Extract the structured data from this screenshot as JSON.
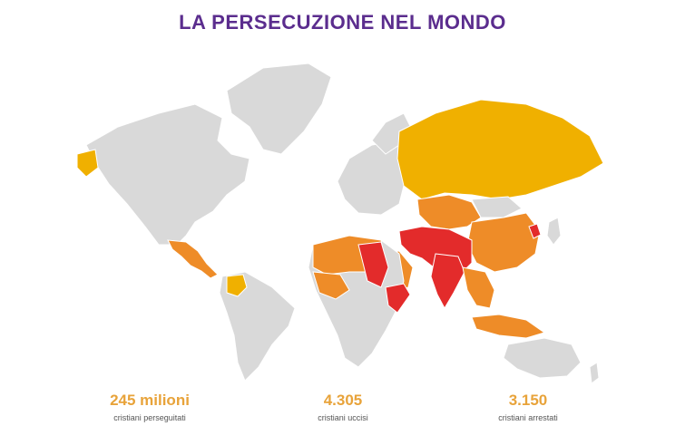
{
  "title": "LA PERSECUZIONE NEL MONDO",
  "colors": {
    "title": "#5b2d8e",
    "base_land": "#d9d9d9",
    "level_high": "#f0b000",
    "level_very_high": "#ee8c28",
    "level_extreme": "#e32b2b",
    "stat_value": "#e8a33a"
  },
  "stats": [
    {
      "value": "245 milioni",
      "label": "cristiani perseguitati"
    },
    {
      "value": "4.305",
      "label": "cristiani uccisi"
    },
    {
      "value": "3.150",
      "label": "cristiani arrestati"
    }
  ]
}
